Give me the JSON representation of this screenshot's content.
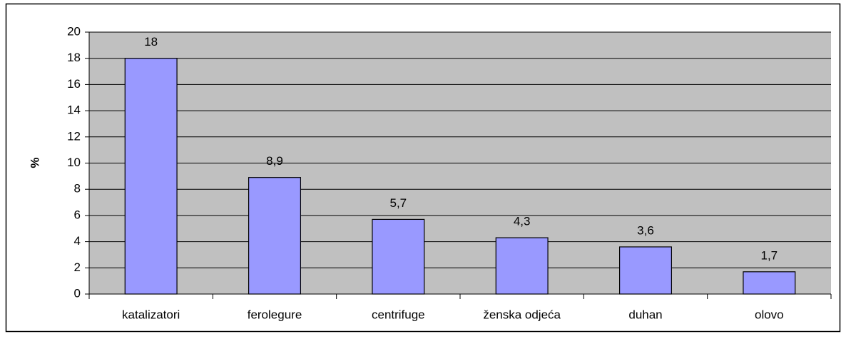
{
  "chart_data": {
    "type": "bar",
    "y_label": "%",
    "categories": [
      "katalizatori",
      "ferolegure",
      "centrifuge",
      "ženska odjeća",
      "duhan",
      "olovo"
    ],
    "values": [
      18,
      8.9,
      5.7,
      4.3,
      3.6,
      1.7
    ],
    "value_labels": [
      "18",
      "8,9",
      "5,7",
      "4,3",
      "3,6",
      "1,7"
    ],
    "color": "#9999ff",
    "ylim": [
      0,
      20
    ],
    "yticks": [
      0,
      2,
      4,
      6,
      8,
      10,
      12,
      14,
      16,
      18,
      20
    ],
    "grid": true
  }
}
